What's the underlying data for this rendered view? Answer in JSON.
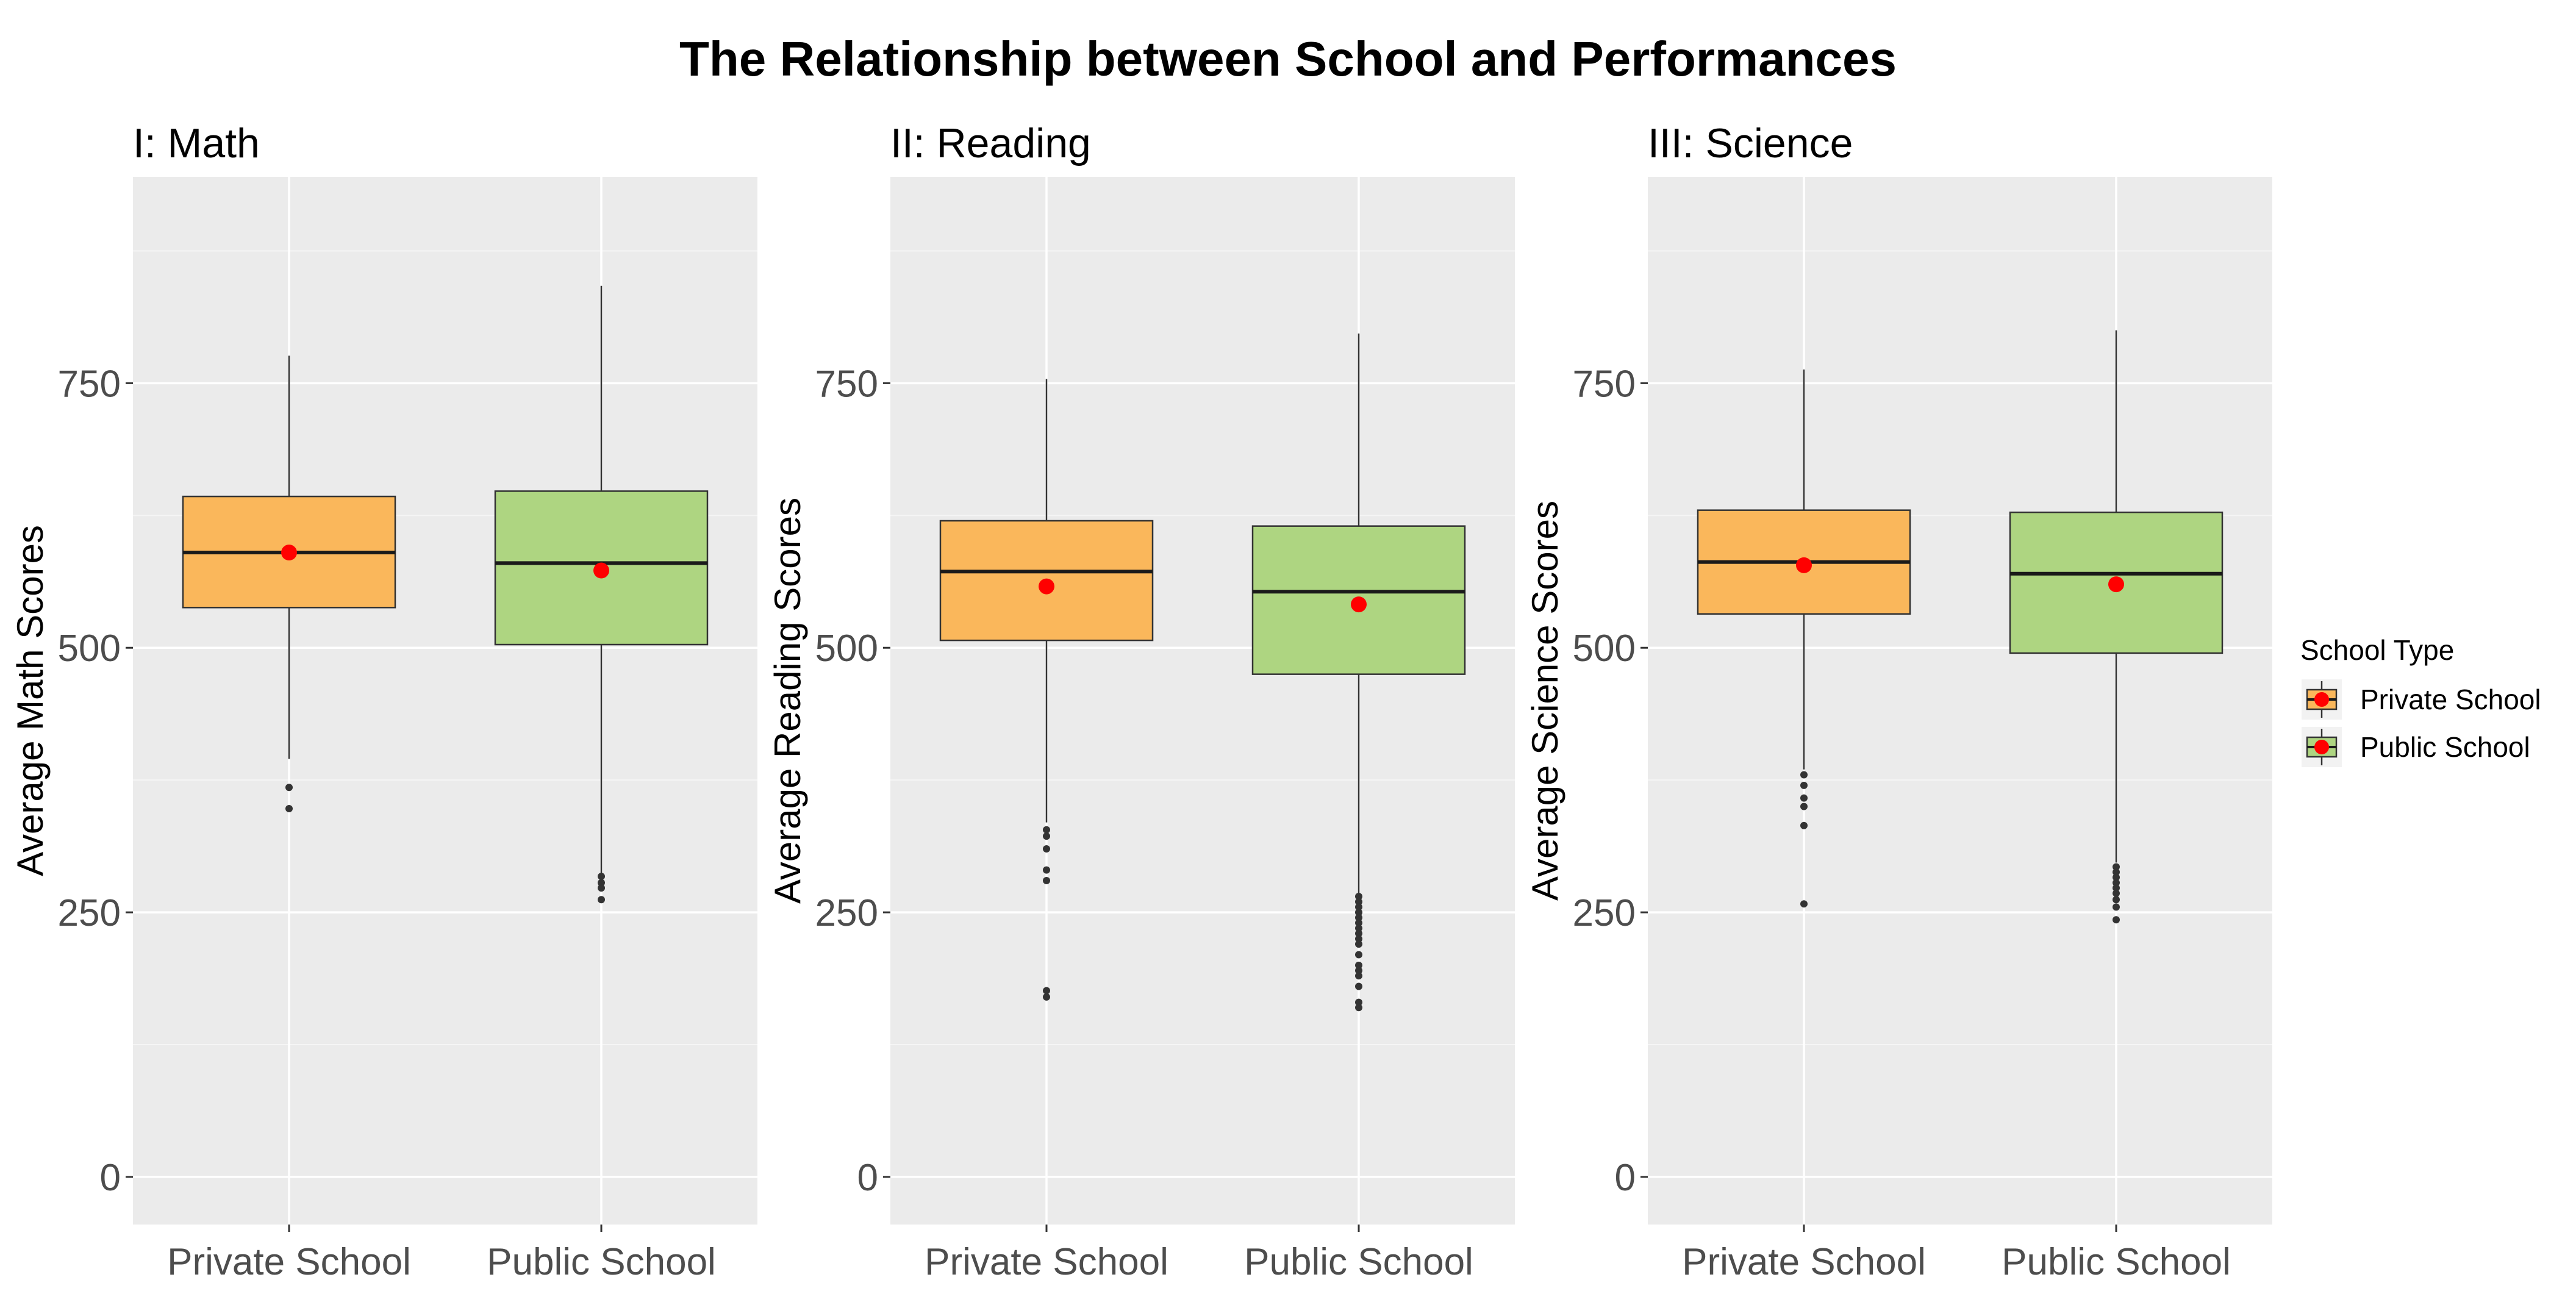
{
  "title": "The Relationship between School and Performances",
  "legend": {
    "title": "School Type",
    "position": "right",
    "items": [
      {
        "label": "Private School",
        "color": "#FAB75B"
      },
      {
        "label": "Public School",
        "color": "#AED581"
      }
    ]
  },
  "chart_data": [
    {
      "type": "boxplot",
      "panel_title": "I: Math",
      "xlabel": "",
      "ylabel": "Average Math Scores",
      "categories": [
        "Private School",
        "Public School"
      ],
      "ylim": [
        -45,
        945
      ],
      "yticks": [
        0,
        250,
        500,
        750
      ],
      "grid": true,
      "series": [
        {
          "name": "Private School",
          "min": 395,
          "q1": 538,
          "median": 590,
          "q3": 643,
          "max": 776,
          "mean": 590,
          "outliers": [
            368,
            348
          ]
        },
        {
          "name": "Public School",
          "min": 287,
          "q1": 503,
          "median": 580,
          "q3": 648,
          "max": 842,
          "mean": 573,
          "outliers": [
            284,
            278,
            273,
            262
          ]
        }
      ]
    },
    {
      "type": "boxplot",
      "panel_title": "II: Reading",
      "xlabel": "",
      "ylabel": "Average Reading Scores",
      "categories": [
        "Private School",
        "Public School"
      ],
      "ylim": [
        -45,
        945
      ],
      "yticks": [
        0,
        250,
        500,
        750
      ],
      "grid": true,
      "series": [
        {
          "name": "Private School",
          "min": 335,
          "q1": 507,
          "median": 572,
          "q3": 620,
          "max": 754,
          "mean": 558,
          "outliers": [
            328,
            322,
            310,
            290,
            280,
            176,
            170
          ]
        },
        {
          "name": "Public School",
          "min": 268,
          "q1": 475,
          "median": 553,
          "q3": 615,
          "max": 797,
          "mean": 541,
          "outliers": [
            265,
            260,
            255,
            250,
            245,
            240,
            235,
            230,
            225,
            220,
            210,
            200,
            195,
            190,
            180,
            165,
            160
          ]
        }
      ]
    },
    {
      "type": "boxplot",
      "panel_title": "III: Science",
      "xlabel": "",
      "ylabel": "Average Science Scores",
      "categories": [
        "Private School",
        "Public School"
      ],
      "ylim": [
        -45,
        945
      ],
      "yticks": [
        0,
        250,
        500,
        750
      ],
      "grid": true,
      "series": [
        {
          "name": "Private School",
          "min": 385,
          "q1": 532,
          "median": 581,
          "q3": 630,
          "max": 763,
          "mean": 578,
          "outliers": [
            380,
            370,
            358,
            350,
            332,
            258
          ]
        },
        {
          "name": "Public School",
          "min": 297,
          "q1": 495,
          "median": 570,
          "q3": 628,
          "max": 800,
          "mean": 560,
          "outliers": [
            293,
            288,
            283,
            278,
            273,
            268,
            262,
            255,
            243
          ]
        }
      ]
    }
  ]
}
